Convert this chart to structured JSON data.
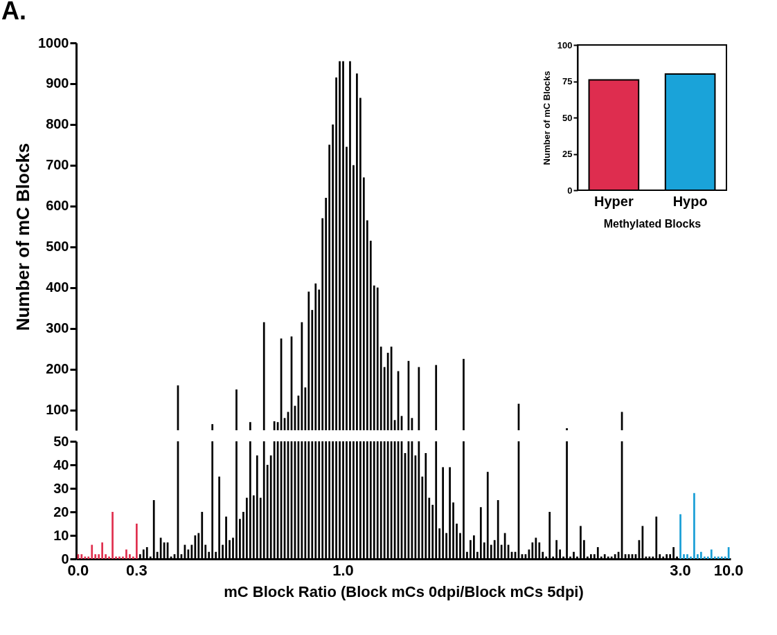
{
  "chart_data": [
    {
      "type": "bar",
      "title": "A.",
      "ylabel": "Number of mC Blocks",
      "tick_labels": "y",
      "color": "#000000",
      "ylim": [
        50,
        1000
      ],
      "yticks": [
        100,
        200,
        300,
        400,
        500,
        600,
        700,
        800,
        900,
        1000
      ],
      "categories": [
        "0.0",
        null,
        null,
        null,
        null,
        null,
        null,
        null,
        null,
        null,
        null,
        null,
        null,
        null,
        null,
        null,
        null,
        "0.3",
        null,
        null,
        null,
        null,
        null,
        null,
        null,
        null,
        null,
        null,
        null,
        null,
        null,
        null,
        null,
        null,
        null,
        null,
        null,
        null,
        null,
        null,
        null,
        null,
        null,
        null,
        null,
        null,
        null,
        null,
        null,
        null,
        null,
        null,
        null,
        null,
        null,
        null,
        null,
        null,
        null,
        null,
        null,
        null,
        null,
        null,
        null,
        null,
        null,
        null,
        null,
        null,
        null,
        null,
        null,
        null,
        null,
        null,
        null,
        "1.0",
        null,
        null,
        null,
        null,
        null,
        null,
        null,
        null,
        null,
        null,
        null,
        null,
        null,
        null,
        null,
        null,
        null,
        null,
        null,
        null,
        null,
        null,
        null,
        null,
        null,
        null,
        null,
        null,
        null,
        null,
        null,
        null,
        null,
        null,
        null,
        null,
        null,
        null,
        null,
        null,
        null,
        null,
        null,
        null,
        null,
        null,
        null,
        null,
        null,
        null,
        null,
        null,
        null,
        null,
        null,
        null,
        null,
        null,
        null,
        null,
        null,
        null,
        null,
        null,
        null,
        null,
        null,
        null,
        null,
        null,
        null,
        null,
        null,
        null,
        null,
        null,
        null,
        null,
        null,
        null,
        null,
        null,
        null,
        null,
        null,
        null,
        null,
        null,
        null,
        null,
        null,
        null,
        null,
        null,
        null,
        null,
        null,
        "3.0",
        null,
        null,
        null,
        null,
        null,
        null,
        null,
        null,
        null,
        null,
        null,
        null,
        null,
        "10.0"
      ],
      "values": [
        null,
        null,
        null,
        null,
        null,
        null,
        null,
        null,
        null,
        null,
        null,
        null,
        null,
        null,
        null,
        null,
        null,
        null,
        null,
        null,
        null,
        null,
        null,
        null,
        null,
        null,
        null,
        null,
        null,
        160,
        null,
        null,
        null,
        null,
        null,
        null,
        null,
        null,
        null,
        65,
        null,
        null,
        null,
        null,
        null,
        null,
        150,
        null,
        null,
        null,
        70,
        null,
        null,
        null,
        315,
        null,
        null,
        72,
        70,
        275,
        80,
        95,
        280,
        110,
        135,
        315,
        155,
        390,
        345,
        410,
        395,
        570,
        620,
        750,
        800,
        915,
        955,
        955,
        745,
        955,
        700,
        925,
        865,
        670,
        565,
        515,
        405,
        400,
        255,
        205,
        240,
        255,
        75,
        195,
        85,
        null,
        220,
        80,
        null,
        205,
        null,
        null,
        null,
        null,
        210,
        null,
        null,
        null,
        null,
        null,
        null,
        null,
        225,
        null,
        null,
        null,
        null,
        null,
        null,
        null,
        null,
        null,
        null,
        null,
        null,
        null,
        null,
        null,
        115,
        null,
        null,
        null,
        null,
        null,
        null,
        null,
        null,
        null,
        null,
        null,
        null,
        null,
        55,
        null,
        null,
        null,
        null,
        null,
        null,
        null,
        null,
        null,
        null,
        null,
        null,
        null,
        null,
        null,
        95,
        null,
        null,
        null,
        null,
        null,
        null,
        null,
        null,
        null,
        null,
        null,
        null,
        null,
        null,
        null,
        null,
        null,
        null,
        null,
        null,
        null,
        null,
        null,
        null,
        null,
        null,
        null,
        null,
        null,
        null,
        null
      ]
    },
    {
      "type": "bar",
      "xlabel": "mC Block Ratio (Block mCs 0dpi/Block mCs 5dpi)",
      "ylim": [
        0,
        50
      ],
      "yticks": [
        0,
        10,
        20,
        30,
        40,
        50
      ],
      "categories": [
        "0.0",
        null,
        null,
        null,
        null,
        null,
        null,
        null,
        null,
        null,
        null,
        null,
        null,
        null,
        null,
        null,
        null,
        "0.3",
        null,
        null,
        null,
        null,
        null,
        null,
        null,
        null,
        null,
        null,
        null,
        null,
        null,
        null,
        null,
        null,
        null,
        null,
        null,
        null,
        null,
        null,
        null,
        null,
        null,
        null,
        null,
        null,
        null,
        null,
        null,
        null,
        null,
        null,
        null,
        null,
        null,
        null,
        null,
        null,
        null,
        null,
        null,
        null,
        null,
        null,
        null,
        null,
        null,
        null,
        null,
        null,
        null,
        null,
        null,
        null,
        null,
        null,
        null,
        "1.0",
        null,
        null,
        null,
        null,
        null,
        null,
        null,
        null,
        null,
        null,
        null,
        null,
        null,
        null,
        null,
        null,
        null,
        null,
        null,
        null,
        null,
        null,
        null,
        null,
        null,
        null,
        null,
        null,
        null,
        null,
        null,
        null,
        null,
        null,
        null,
        null,
        null,
        null,
        null,
        null,
        null,
        null,
        null,
        null,
        null,
        null,
        null,
        null,
        null,
        null,
        null,
        null,
        null,
        null,
        null,
        null,
        null,
        null,
        null,
        null,
        null,
        null,
        null,
        null,
        null,
        null,
        null,
        null,
        null,
        null,
        null,
        null,
        null,
        null,
        null,
        null,
        null,
        null,
        null,
        null,
        null,
        null,
        null,
        null,
        null,
        null,
        null,
        null,
        null,
        null,
        null,
        null,
        null,
        null,
        null,
        null,
        null,
        "3.0",
        null,
        null,
        null,
        null,
        null,
        null,
        null,
        null,
        null,
        null,
        null,
        null,
        null,
        "10.0"
      ],
      "values": [
        2,
        2,
        1,
        1,
        6,
        2,
        2,
        7,
        2,
        1,
        20,
        1,
        1,
        1,
        4,
        2,
        1,
        15,
        2,
        4,
        5,
        1,
        25,
        3,
        9,
        7,
        7,
        1,
        2,
        50,
        2,
        6,
        4,
        6,
        10,
        11,
        20,
        6,
        3,
        50,
        3,
        35,
        6,
        18,
        8,
        9,
        50,
        17,
        20,
        26,
        50,
        27,
        44,
        26,
        50,
        40,
        44,
        50,
        50,
        50,
        50,
        50,
        50,
        50,
        50,
        50,
        50,
        50,
        50,
        50,
        50,
        50,
        50,
        50,
        50,
        50,
        50,
        50,
        50,
        50,
        50,
        50,
        50,
        50,
        50,
        50,
        50,
        50,
        50,
        50,
        50,
        50,
        50,
        50,
        50,
        45,
        50,
        50,
        44,
        50,
        35,
        45,
        26,
        23,
        50,
        13,
        39,
        11,
        39,
        24,
        15,
        11,
        50,
        3,
        8,
        10,
        3,
        22,
        7,
        37,
        6,
        8,
        25,
        6,
        11,
        6,
        3,
        3,
        50,
        2,
        2,
        4,
        7,
        9,
        7,
        3,
        1,
        20,
        1,
        8,
        4,
        1,
        50,
        1,
        3,
        1,
        14,
        8,
        1,
        2,
        2,
        5,
        1,
        2,
        1,
        1,
        2,
        3,
        50,
        2,
        2,
        2,
        2,
        8,
        14,
        1,
        1,
        1,
        18,
        2,
        1,
        2,
        2,
        5,
        1,
        19,
        2,
        2,
        1,
        28,
        2,
        3,
        1,
        1,
        4,
        1,
        1,
        1,
        1,
        5
      ],
      "colors": [
        "#e0304f",
        "#e0304f",
        "#e0304f",
        "#e0304f",
        "#e0304f",
        "#e0304f",
        "#e0304f",
        "#e0304f",
        "#e0304f",
        "#e0304f",
        "#e0304f",
        "#e0304f",
        "#e0304f",
        "#e0304f",
        "#e0304f",
        "#e0304f",
        "#e0304f",
        "#e0304f",
        "#000000",
        "#000000",
        "#000000",
        "#000000",
        "#000000",
        "#000000",
        "#000000",
        "#000000",
        "#000000",
        "#000000",
        "#000000",
        "#000000",
        "#000000",
        "#000000",
        "#000000",
        "#000000",
        "#000000",
        "#000000",
        "#000000",
        "#000000",
        "#000000",
        "#000000",
        "#000000",
        "#000000",
        "#000000",
        "#000000",
        "#000000",
        "#000000",
        "#000000",
        "#000000",
        "#000000",
        "#000000",
        "#000000",
        "#000000",
        "#000000",
        "#000000",
        "#000000",
        "#000000",
        "#000000",
        "#000000",
        "#000000",
        "#000000",
        "#000000",
        "#000000",
        "#000000",
        "#000000",
        "#000000",
        "#000000",
        "#000000",
        "#000000",
        "#000000",
        "#000000",
        "#000000",
        "#000000",
        "#000000",
        "#000000",
        "#000000",
        "#000000",
        "#000000",
        "#000000",
        "#000000",
        "#000000",
        "#000000",
        "#000000",
        "#000000",
        "#000000",
        "#000000",
        "#000000",
        "#000000",
        "#000000",
        "#000000",
        "#000000",
        "#000000",
        "#000000",
        "#000000",
        "#000000",
        "#000000",
        "#000000",
        "#000000",
        "#000000",
        "#000000",
        "#000000",
        "#000000",
        "#000000",
        "#000000",
        "#000000",
        "#000000",
        "#000000",
        "#000000",
        "#000000",
        "#000000",
        "#000000",
        "#000000",
        "#000000",
        "#000000",
        "#000000",
        "#000000",
        "#000000",
        "#000000",
        "#000000",
        "#000000",
        "#000000",
        "#000000",
        "#000000",
        "#000000",
        "#000000",
        "#000000",
        "#000000",
        "#000000",
        "#000000",
        "#000000",
        "#000000",
        "#000000",
        "#000000",
        "#000000",
        "#000000",
        "#000000",
        "#000000",
        "#000000",
        "#000000",
        "#000000",
        "#000000",
        "#000000",
        "#000000",
        "#000000",
        "#000000",
        "#000000",
        "#000000",
        "#000000",
        "#000000",
        "#000000",
        "#000000",
        "#000000",
        "#000000",
        "#000000",
        "#000000",
        "#000000",
        "#000000",
        "#000000",
        "#000000",
        "#000000",
        "#000000",
        "#000000",
        "#000000",
        "#000000",
        "#000000",
        "#000000",
        "#000000",
        "#000000",
        "#000000",
        "#000000",
        "#000000",
        "#000000",
        "#000000",
        "#000000",
        "#000000",
        "#000000",
        "#1a9fd6",
        "#1a9fd6",
        "#1a9fd6",
        "#1a9fd6",
        "#1a9fd6",
        "#1a9fd6",
        "#1a9fd6",
        "#1a9fd6",
        "#1a9fd6",
        "#1a9fd6",
        "#1a9fd6",
        "#1a9fd6",
        "#1a9fd6",
        "#1a9fd6",
        "#1a9fd6"
      ]
    },
    {
      "type": "bar",
      "xlabel": "Methylated Blocks",
      "ylabel": "Number of mC Blocks",
      "categories": [
        "Hyper",
        "Hypo"
      ],
      "values": [
        76,
        80
      ],
      "colors": [
        "#de2d4f",
        "#1aa3d9"
      ],
      "ylim": [
        0,
        100
      ],
      "yticks": [
        0,
        25,
        50,
        75,
        100
      ]
    }
  ]
}
